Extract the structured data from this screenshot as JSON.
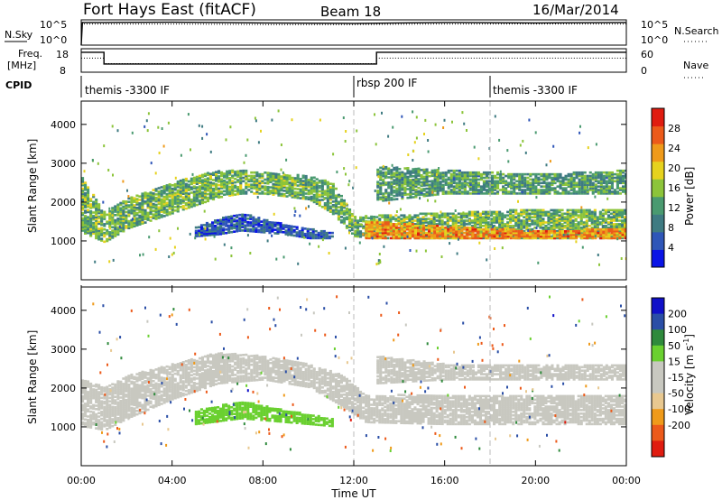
{
  "header": {
    "station": "Fort Hays East (fitACF)",
    "beam": "Beam 18",
    "date": "16/Mar/2014"
  },
  "colors": {
    "frame": "#000000",
    "power_scale": [
      "#0a14e6",
      "#2f56b8",
      "#3f7b82",
      "#4a9a70",
      "#8cc43a",
      "#e6d21e",
      "#ef9a1a",
      "#ec5a1a",
      "#e01c10"
    ],
    "velocity_scale": [
      "#e01c10",
      "#ec5a1a",
      "#ef9a1a",
      "#e8c890",
      "#c8c8c0",
      "#c8c8c0",
      "#6ad030",
      "#2f8a3c",
      "#2a4ea6",
      "#1010c8"
    ]
  },
  "top_panels": {
    "sky_left_label": "N.Sky",
    "search_right_label": "N.Search",
    "sky_ticks_left": [
      "10^5",
      "10^0"
    ],
    "sky_ticks_right": [
      "10^5",
      "10^0"
    ],
    "freq_label_line1": "Freq.",
    "freq_label_line2": "[MHz]",
    "freq_ticks": [
      "18",
      "8"
    ],
    "nave_label": "Nave",
    "nave_ticks": [
      "60",
      "0"
    ],
    "cpid_label": "CPID",
    "cpid_segments": [
      "themis -3300 IF",
      "rbsp 200 IF",
      "themis -3300 IF"
    ]
  },
  "axes": {
    "ylabel": "Slant Range [km]",
    "xlabel": "Time UT",
    "yticks": [
      "1000",
      "2000",
      "3000",
      "4000"
    ],
    "xticks": [
      "00:00",
      "04:00",
      "08:00",
      "12:00",
      "16:00",
      "20:00",
      "00:00"
    ]
  },
  "colorbars": {
    "power_label": "Power [dB]",
    "power_ticks": [
      "4",
      "8",
      "12",
      "16",
      "20",
      "24",
      "28"
    ],
    "velocity_label": "Velocity [m s",
    "velocity_exponent": "-1",
    "velocity_label_close": "]",
    "velocity_ticks": [
      "200",
      "100",
      "50",
      "15",
      "-15",
      "-50",
      "-100",
      "-200"
    ]
  },
  "chart_data": [
    {
      "type": "line",
      "title": "N.Sky / N.Search",
      "x_range_hours": [
        0,
        24
      ],
      "y_scale": "log",
      "ylim": [
        1,
        100000
      ],
      "series": [
        {
          "name": "N.Sky",
          "style": "solid",
          "x": [
            0,
            0.05,
            1,
            4,
            8,
            12,
            16,
            20,
            24
          ],
          "values": [
            1,
            30000,
            30000,
            35000,
            25000,
            20000,
            30000,
            25000,
            30000
          ]
        },
        {
          "name": "N.Search",
          "style": "dotted",
          "x": [
            0,
            4,
            8,
            12,
            16,
            20,
            24
          ],
          "values": [
            15000,
            15000,
            12000,
            12000,
            15000,
            15000,
            15000
          ]
        }
      ]
    },
    {
      "type": "line",
      "title": "Freq. / Nave",
      "x_range_hours": [
        0,
        24
      ],
      "series": [
        {
          "name": "Freq. [MHz]",
          "style": "solid",
          "x": [
            0,
            1.0,
            1.0,
            13.0,
            13.0,
            24
          ],
          "values": [
            16.5,
            16.5,
            11.5,
            11.5,
            16.5,
            16.5
          ],
          "ylim": [
            8,
            18
          ]
        },
        {
          "name": "Nave",
          "style": "dotted",
          "x": [
            0,
            1.0,
            1.0,
            13.0,
            13.0,
            24
          ],
          "values": [
            36,
            36,
            22,
            22,
            36,
            36
          ],
          "ylim": [
            0,
            60
          ]
        }
      ]
    },
    {
      "type": "table",
      "title": "CPID",
      "segments": [
        {
          "start_hour": 0,
          "end_hour": 12,
          "label": "themis -3300 IF"
        },
        {
          "start_hour": 12,
          "end_hour": 18,
          "label": "rbsp 200 IF"
        },
        {
          "start_hour": 18,
          "end_hour": 24,
          "label": "themis -3300 IF"
        }
      ]
    },
    {
      "type": "heatmap",
      "title": "Power [dB]",
      "x_range_hours": [
        0,
        24
      ],
      "ylim_km": [
        0,
        4600
      ],
      "zlim": [
        0,
        32
      ],
      "regions": [
        {
          "feature": "main band",
          "t": [
            0,
            1,
            2,
            4,
            6,
            7,
            8,
            10,
            11,
            12,
            13,
            16,
            20,
            24
          ],
          "lower_km": [
            1200,
            950,
            1300,
            1700,
            2100,
            2200,
            2200,
            2050,
            1700,
            1100,
            1050,
            1050,
            1050,
            1050
          ],
          "upper_km": [
            2600,
            1700,
            2100,
            2500,
            2800,
            2800,
            2750,
            2650,
            2500,
            1600,
            1650,
            1700,
            1800,
            1800
          ],
          "power_db": 14
        },
        {
          "feature": "lower arc",
          "t": [
            5,
            6,
            7,
            8,
            9,
            10,
            11
          ],
          "lower_km": [
            1100,
            1150,
            1250,
            1200,
            1150,
            1050,
            1050
          ],
          "upper_km": [
            1350,
            1550,
            1700,
            1550,
            1400,
            1300,
            1200
          ],
          "power_db": 6
        },
        {
          "feature": "far range echoes",
          "t": [
            13,
            16,
            20,
            24
          ],
          "lower_km": [
            2000,
            2200,
            2200,
            2200
          ],
          "upper_km": [
            2900,
            2800,
            2700,
            2800
          ],
          "power_db": 12
        },
        {
          "feature": "strong near-range band",
          "t": [
            12.5,
            16,
            20,
            24
          ],
          "lower_km": [
            1050,
            1050,
            1050,
            1050
          ],
          "upper_km": [
            1500,
            1350,
            1250,
            1300
          ],
          "power_db": 24
        }
      ]
    },
    {
      "type": "heatmap",
      "title": "Velocity [m s-1]",
      "x_range_hours": [
        0,
        24
      ],
      "ylim_km": [
        0,
        4600
      ],
      "zlim": [
        -250,
        250
      ],
      "regions": [
        {
          "feature": "ground scatter band",
          "t": [
            0,
            1,
            2,
            4,
            6,
            8,
            10,
            11.5,
            12.5,
            16,
            20,
            24
          ],
          "lower_km": [
            1000,
            900,
            1200,
            1700,
            2100,
            2200,
            2000,
            1500,
            1100,
            1050,
            1050,
            1050
          ],
          "upper_km": [
            2200,
            2000,
            2300,
            2600,
            2900,
            2800,
            2600,
            2300,
            1800,
            1800,
            1800,
            1800
          ],
          "velocity": 0
        },
        {
          "feature": "lower arc",
          "t": [
            5,
            7,
            9,
            11
          ],
          "lower_km": [
            1050,
            1200,
            1100,
            1000
          ],
          "upper_km": [
            1400,
            1650,
            1400,
            1200
          ],
          "velocity": 30
        },
        {
          "feature": "far range band",
          "t": [
            13,
            16,
            20,
            24
          ],
          "lower_km": [
            2100,
            2200,
            2200,
            2200
          ],
          "upper_km": [
            2800,
            2600,
            2600,
            2600
          ],
          "velocity": 0
        }
      ]
    }
  ]
}
